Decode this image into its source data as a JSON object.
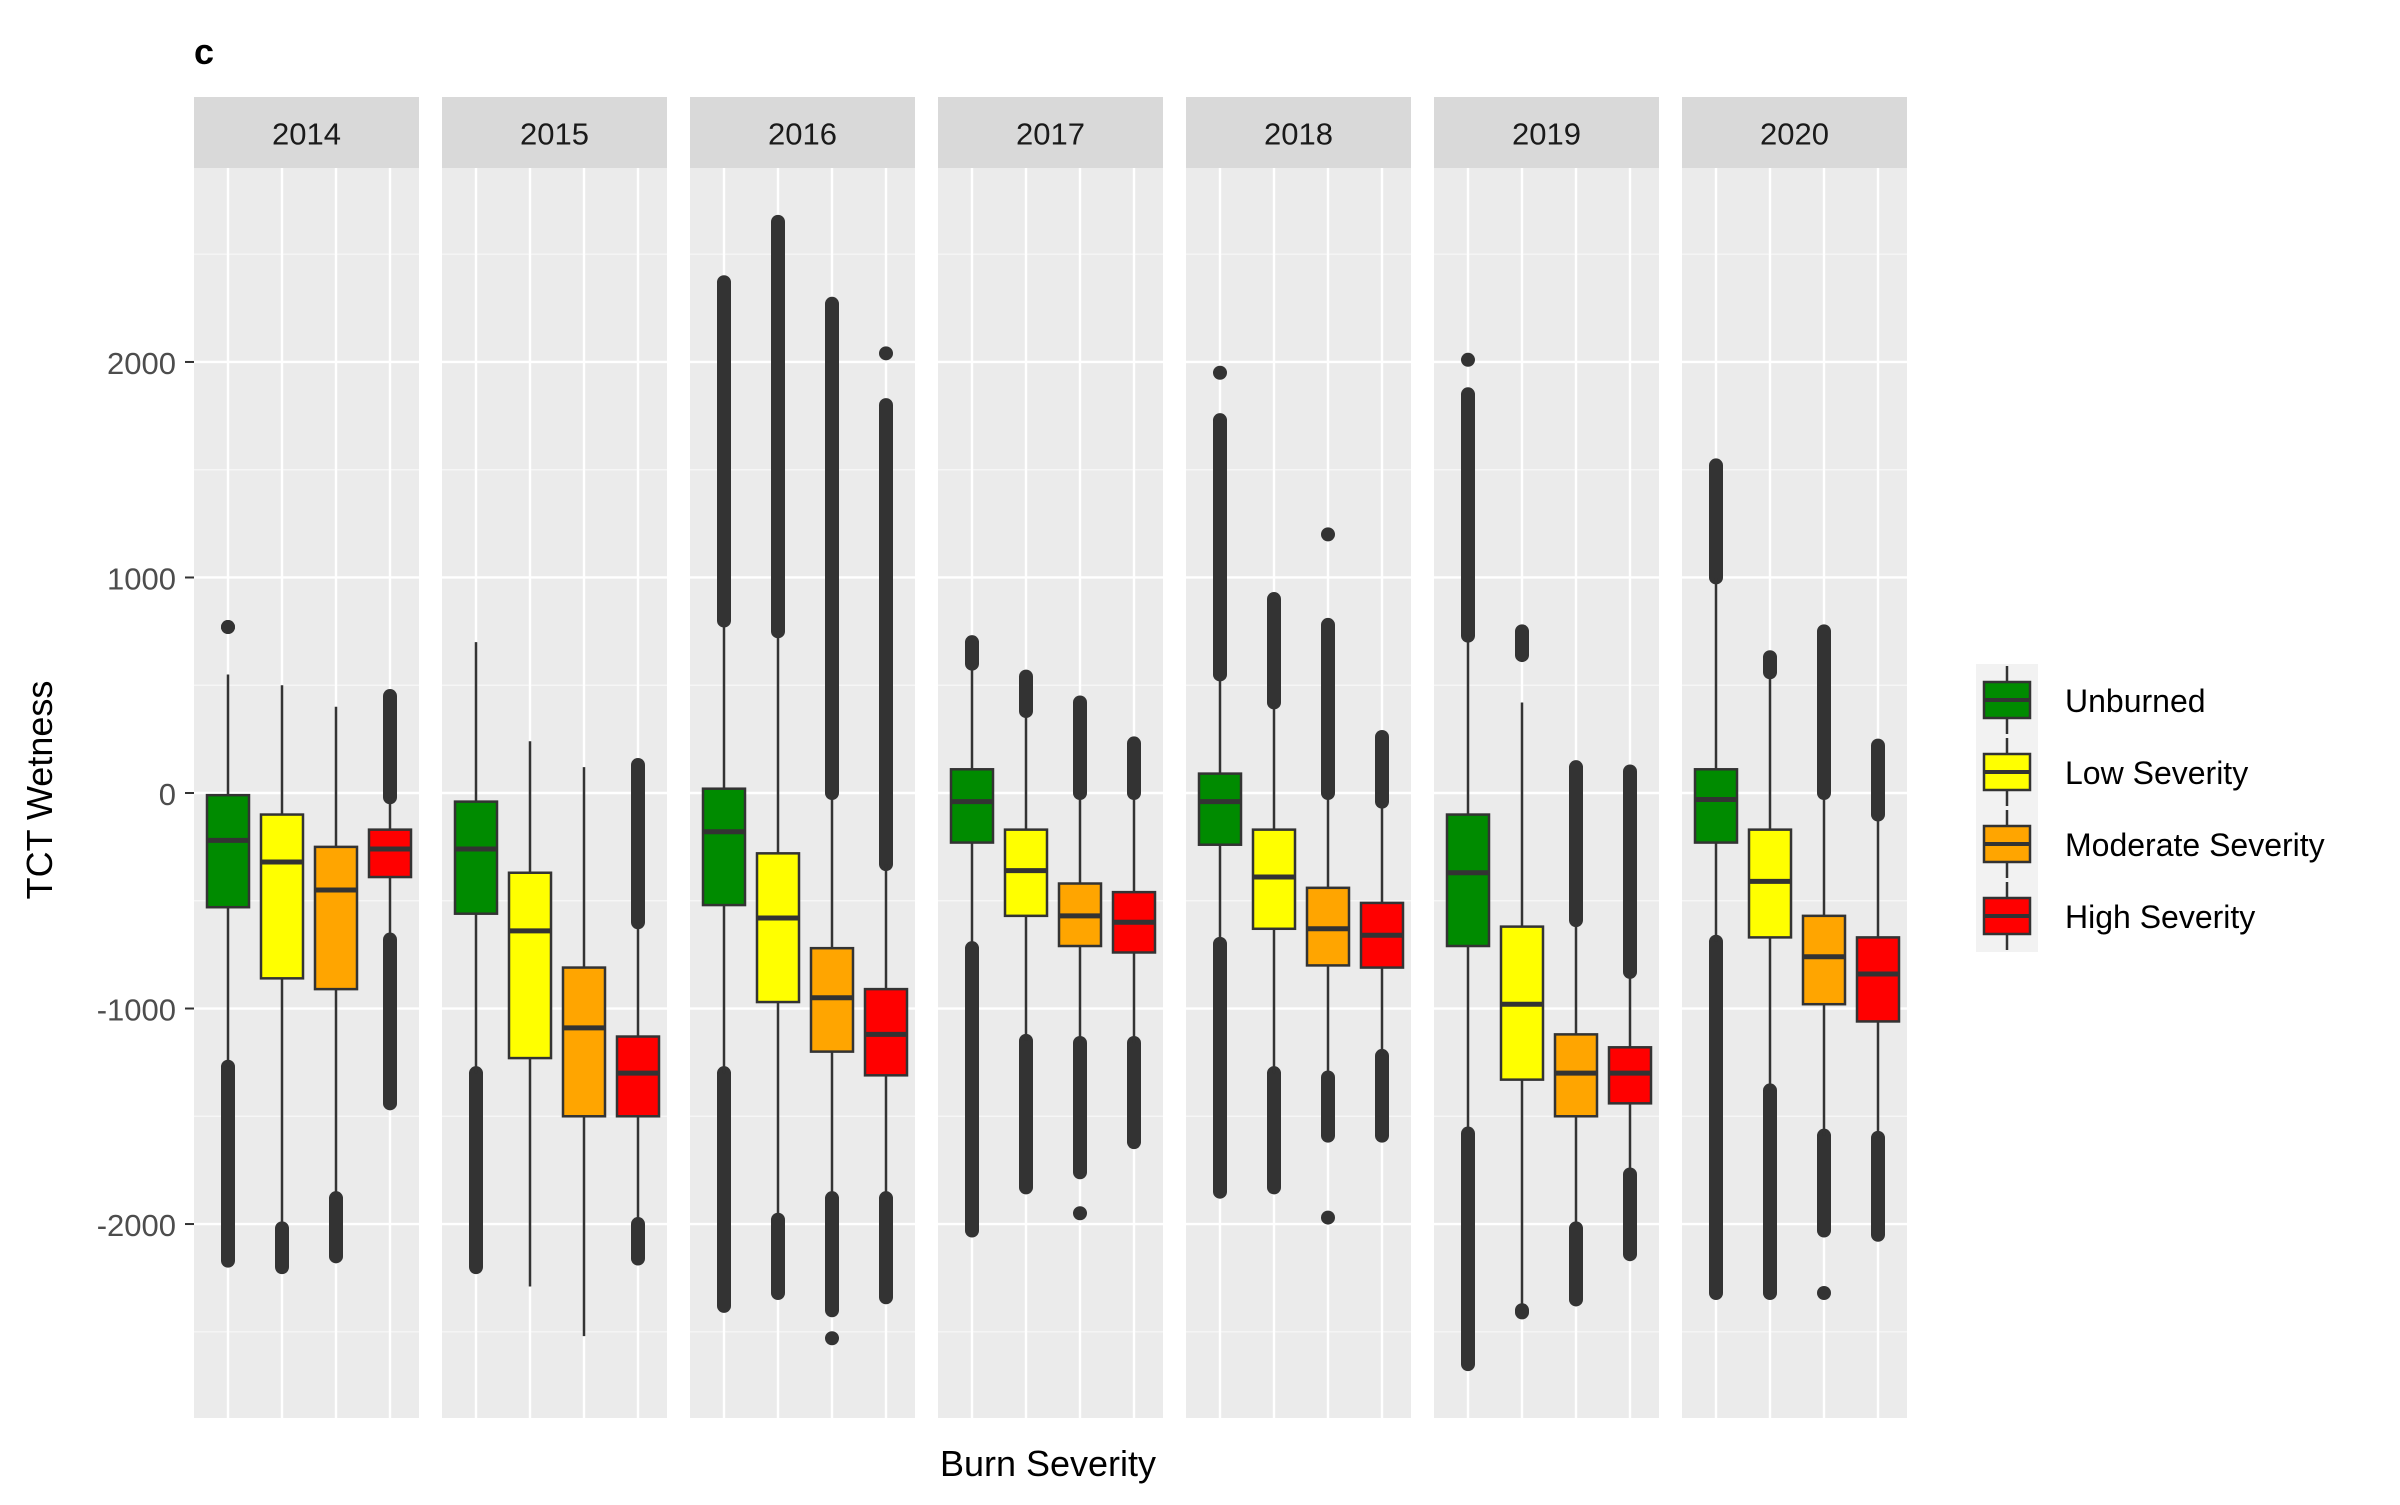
{
  "chart_data": {
    "type": "box",
    "title": "c",
    "xlabel": "Burn Severity",
    "ylabel": "TCT Wetness",
    "ylim": [
      -2900,
      2900
    ],
    "y_ticks": [
      -2000,
      -1000,
      0,
      1000,
      2000
    ],
    "y_tick_labels": [
      "-2000",
      "-1000",
      "0",
      "1000",
      "2000"
    ],
    "grid": true,
    "legend_position": "right",
    "legend": [
      {
        "name": "Unburned",
        "color": "#008B00"
      },
      {
        "name": "Low Severity",
        "color": "#FFFF00"
      },
      {
        "name": "Moderate Severity",
        "color": "#FFA500"
      },
      {
        "name": "High Severity",
        "color": "#FF0000"
      }
    ],
    "panels": [
      {
        "year": "2014",
        "boxes": [
          {
            "q1": -530,
            "median": -220,
            "q3": -10,
            "whisker_low": -1270,
            "whisker_high": 550,
            "out_low": -2170,
            "out_low_start": -1270,
            "out_high": 770,
            "out_high_start": 770,
            "outliers": [
              770
            ]
          },
          {
            "q1": -860,
            "median": -320,
            "q3": -100,
            "whisker_low": -2000,
            "whisker_high": 500,
            "out_low": -2200,
            "out_low_start": -2020,
            "out_high": null,
            "out_high_start": null,
            "outliers": []
          },
          {
            "q1": -910,
            "median": -450,
            "q3": -250,
            "whisker_low": -1880,
            "whisker_high": 400,
            "out_low": -2150,
            "out_low_start": -1880,
            "out_high": null,
            "out_high_start": null,
            "outliers": []
          },
          {
            "q1": -390,
            "median": -260,
            "q3": -170,
            "whisker_low": -680,
            "whisker_high": -20,
            "out_low": -1440,
            "out_low_start": -680,
            "out_high": 450,
            "out_high_start": -20,
            "outliers": []
          }
        ]
      },
      {
        "year": "2015",
        "boxes": [
          {
            "q1": -560,
            "median": -260,
            "q3": -40,
            "whisker_low": -1300,
            "whisker_high": 700,
            "out_low": -2200,
            "out_low_start": -1300,
            "out_high": null,
            "out_high_start": null,
            "outliers": []
          },
          {
            "q1": -1230,
            "median": -640,
            "q3": -370,
            "whisker_low": -2290,
            "whisker_high": 240,
            "out_low": null,
            "out_low_start": null,
            "out_high": null,
            "out_high_start": null,
            "outliers": []
          },
          {
            "q1": -1500,
            "median": -1090,
            "q3": -810,
            "whisker_low": -2520,
            "whisker_high": 120,
            "out_low": null,
            "out_low_start": null,
            "out_high": null,
            "out_high_start": null,
            "outliers": []
          },
          {
            "q1": -1500,
            "median": -1300,
            "q3": -1130,
            "whisker_low": -2000,
            "whisker_high": -600,
            "out_low": -2160,
            "out_low_start": -2000,
            "out_high": 130,
            "out_high_start": -600,
            "outliers": []
          }
        ]
      },
      {
        "year": "2016",
        "boxes": [
          {
            "q1": -520,
            "median": -180,
            "q3": 20,
            "whisker_low": -1300,
            "whisker_high": 800,
            "out_low": -2380,
            "out_low_start": -1300,
            "out_high": 2370,
            "out_high_start": 800,
            "outliers": []
          },
          {
            "q1": -970,
            "median": -580,
            "q3": -280,
            "whisker_low": -1980,
            "whisker_high": 750,
            "out_low": -2320,
            "out_low_start": -1980,
            "out_high": 2650,
            "out_high_start": 750,
            "outliers": []
          },
          {
            "q1": -1200,
            "median": -950,
            "q3": -720,
            "whisker_low": -1880,
            "whisker_high": 0,
            "out_low": -2400,
            "out_low_start": -1880,
            "out_high": 2270,
            "out_high_start": 0,
            "outliers": [
              -2530
            ]
          },
          {
            "q1": -1310,
            "median": -1120,
            "q3": -910,
            "whisker_low": -1880,
            "whisker_high": -330,
            "out_low": -2340,
            "out_low_start": -1880,
            "out_high": 1800,
            "out_high_start": -330,
            "outliers": [
              2040
            ]
          }
        ]
      },
      {
        "year": "2017",
        "boxes": [
          {
            "q1": -230,
            "median": -40,
            "q3": 110,
            "whisker_low": -720,
            "whisker_high": 600,
            "out_low": -2030,
            "out_low_start": -720,
            "out_high": 700,
            "out_high_start": 600,
            "outliers": []
          },
          {
            "q1": -570,
            "median": -360,
            "q3": -170,
            "whisker_low": -1150,
            "whisker_high": 380,
            "out_low": -1830,
            "out_low_start": -1150,
            "out_high": 540,
            "out_high_start": 380,
            "outliers": []
          },
          {
            "q1": -710,
            "median": -570,
            "q3": -420,
            "whisker_low": -1160,
            "whisker_high": 0,
            "out_low": -1760,
            "out_low_start": -1160,
            "out_high": 420,
            "out_high_start": 0,
            "outliers": [
              -1950
            ]
          },
          {
            "q1": -740,
            "median": -600,
            "q3": -460,
            "whisker_low": -1160,
            "whisker_high": 0,
            "out_low": -1620,
            "out_low_start": -1160,
            "out_high": 230,
            "out_high_start": 0,
            "outliers": []
          }
        ]
      },
      {
        "year": "2018",
        "boxes": [
          {
            "q1": -240,
            "median": -40,
            "q3": 90,
            "whisker_low": -700,
            "whisker_high": 550,
            "out_low": -1850,
            "out_low_start": -700,
            "out_high": 1730,
            "out_high_start": 550,
            "outliers": [
              1950
            ]
          },
          {
            "q1": -630,
            "median": -390,
            "q3": -170,
            "whisker_low": -1300,
            "whisker_high": 420,
            "out_low": -1830,
            "out_low_start": -1300,
            "out_high": 900,
            "out_high_start": 420,
            "outliers": []
          },
          {
            "q1": -800,
            "median": -630,
            "q3": -440,
            "whisker_low": -1320,
            "whisker_high": 0,
            "out_low": -1590,
            "out_low_start": -1320,
            "out_high": 780,
            "out_high_start": 0,
            "outliers": [
              -1970,
              1200
            ]
          },
          {
            "q1": -810,
            "median": -660,
            "q3": -510,
            "whisker_low": -1220,
            "whisker_high": -40,
            "out_low": -1590,
            "out_low_start": -1220,
            "out_high": 260,
            "out_high_start": -40,
            "outliers": []
          }
        ]
      },
      {
        "year": "2019",
        "boxes": [
          {
            "q1": -710,
            "median": -370,
            "q3": -100,
            "whisker_low": -1580,
            "whisker_high": 730,
            "out_low": -2650,
            "out_low_start": -1580,
            "out_high": 1850,
            "out_high_start": 730,
            "outliers": [
              2010
            ]
          },
          {
            "q1": -1330,
            "median": -980,
            "q3": -620,
            "whisker_low": -2400,
            "whisker_high": 420,
            "out_low": -2410,
            "out_low_start": -2400,
            "out_high": 750,
            "out_high_start": 640,
            "outliers": []
          },
          {
            "q1": -1500,
            "median": -1300,
            "q3": -1120,
            "whisker_low": -2020,
            "whisker_high": -590,
            "out_low": -2350,
            "out_low_start": -2020,
            "out_high": 120,
            "out_high_start": -590,
            "outliers": []
          },
          {
            "q1": -1440,
            "median": -1300,
            "q3": -1180,
            "whisker_low": -1770,
            "whisker_high": -830,
            "out_low": -2140,
            "out_low_start": -1770,
            "out_high": 100,
            "out_high_start": -830,
            "outliers": []
          }
        ]
      },
      {
        "year": "2020",
        "boxes": [
          {
            "q1": -230,
            "median": -30,
            "q3": 110,
            "whisker_low": -690,
            "whisker_high": 1000,
            "out_low": -2320,
            "out_low_start": -690,
            "out_high": 1520,
            "out_high_start": 1000,
            "outliers": []
          },
          {
            "q1": -670,
            "median": -410,
            "q3": -170,
            "whisker_low": -1380,
            "whisker_high": 550,
            "out_low": -2320,
            "out_low_start": -1380,
            "out_high": 630,
            "out_high_start": 560,
            "outliers": []
          },
          {
            "q1": -980,
            "median": -760,
            "q3": -570,
            "whisker_low": -1590,
            "whisker_high": 0,
            "out_low": -2030,
            "out_low_start": -1590,
            "out_high": 750,
            "out_high_start": 0,
            "outliers": [
              -2320
            ]
          },
          {
            "q1": -1060,
            "median": -840,
            "q3": -670,
            "whisker_low": -1600,
            "whisker_high": -100,
            "out_low": -2050,
            "out_low_start": -1600,
            "out_high": 220,
            "out_high_start": -100,
            "outliers": []
          }
        ]
      }
    ]
  }
}
